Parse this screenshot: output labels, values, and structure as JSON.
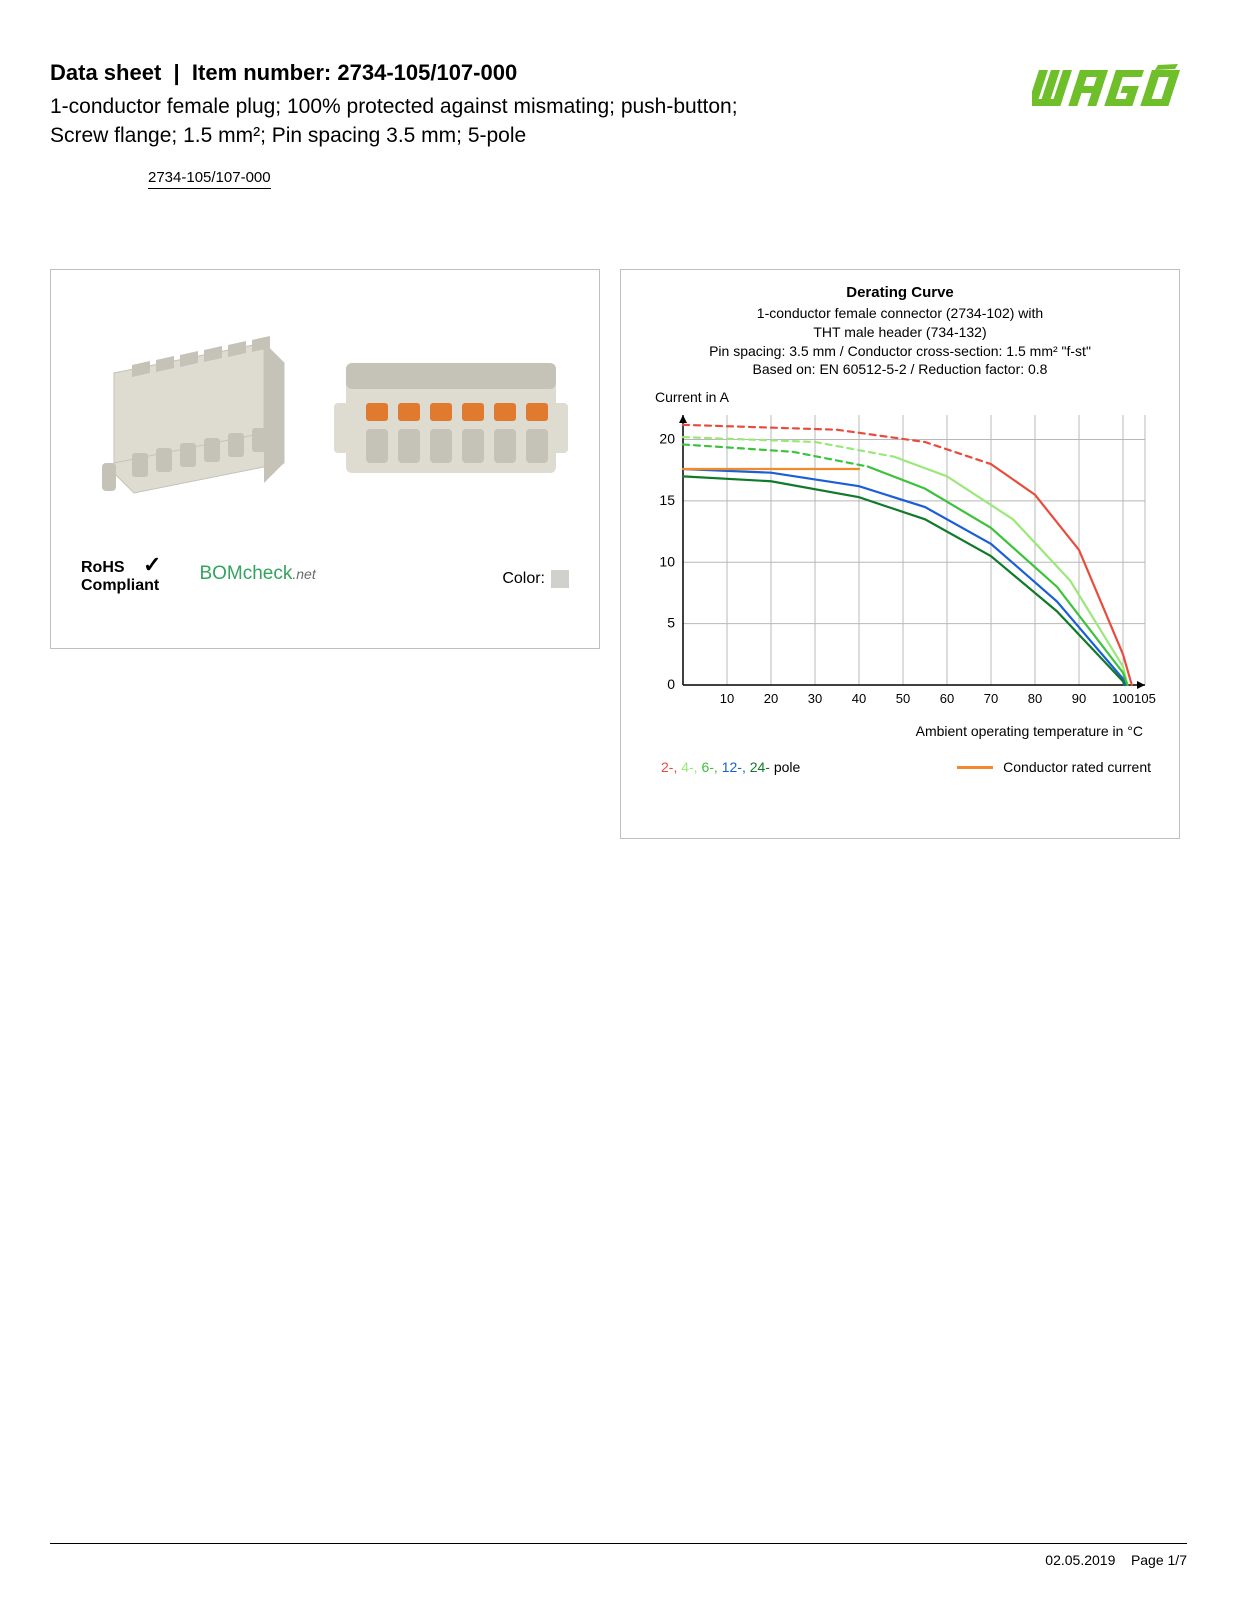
{
  "header": {
    "datasheet_label": "Data sheet",
    "item_label": "Item number:",
    "item_number": "2734-105/107-000",
    "subtitle_line1": "1-conductor female plug; 100% protected against mismating; push-button;",
    "subtitle_line2": "Screw flange; 1.5 mm²; Pin spacing 3.5 mm; 5-pole",
    "item_link": "2734-105/107-000",
    "logo_text": "WAGO",
    "logo_color": "#6fbf2b"
  },
  "left_panel": {
    "rohs_line1": "RoHS",
    "rohs_line2": "Compliant",
    "checkmark": "✓",
    "bomcheck_label": "BOMcheck",
    "bomcheck_suffix": ".net",
    "color_label": "Color:",
    "connector_body_color": "#dedcd0",
    "connector_shadow": "#c5c3b7",
    "connector_button_color": "#e07a2e"
  },
  "chart": {
    "title": "Derating Curve",
    "sub1": "1-conductor female connector (2734-102) with",
    "sub2": "THT male header (734-132)",
    "sub3": "Pin spacing: 3.5 mm / Conductor cross-section: 1.5 mm² \"f-st\"",
    "sub4": "Based on: EN 60512-5-2 / Reduction factor: 0.8",
    "ylabel": "Current in A",
    "xlabel": "Ambient operating temperature in °C",
    "ylim": [
      0,
      22
    ],
    "yticks": [
      0,
      5,
      10,
      15,
      20
    ],
    "xlim": [
      0,
      105
    ],
    "xticks": [
      10,
      20,
      30,
      40,
      50,
      60,
      70,
      80,
      90,
      100,
      105
    ],
    "grid_color": "#b8b8b8",
    "axis_color": "#000000",
    "series": [
      {
        "name": "2-pole-dash",
        "color": "#e84c3d",
        "dash": "6,5",
        "points": [
          [
            0,
            21.2
          ],
          [
            35,
            20.8
          ],
          [
            55,
            19.8
          ],
          [
            70,
            18.0
          ]
        ]
      },
      {
        "name": "2-pole",
        "color": "#e84c3d",
        "dash": "",
        "points": [
          [
            70,
            18.0
          ],
          [
            80,
            15.5
          ],
          [
            90,
            11.0
          ],
          [
            100,
            2.5
          ],
          [
            102,
            0
          ]
        ]
      },
      {
        "name": "4-pole-dash",
        "color": "#9be87a",
        "dash": "6,5",
        "points": [
          [
            0,
            20.2
          ],
          [
            30,
            19.8
          ],
          [
            48,
            18.6
          ]
        ]
      },
      {
        "name": "4-pole",
        "color": "#9be87a",
        "dash": "",
        "points": [
          [
            48,
            18.6
          ],
          [
            60,
            17.0
          ],
          [
            75,
            13.5
          ],
          [
            88,
            8.5
          ],
          [
            100,
            1.5
          ],
          [
            101,
            0
          ]
        ]
      },
      {
        "name": "6-pole-dash",
        "color": "#3cc23c",
        "dash": "6,5",
        "points": [
          [
            0,
            19.6
          ],
          [
            25,
            19.0
          ],
          [
            42,
            17.8
          ]
        ]
      },
      {
        "name": "6-pole",
        "color": "#3cc23c",
        "dash": "",
        "points": [
          [
            42,
            17.8
          ],
          [
            55,
            16.0
          ],
          [
            70,
            12.8
          ],
          [
            85,
            8.0
          ],
          [
            100,
            1.0
          ],
          [
            101,
            0
          ]
        ]
      },
      {
        "name": "12-pole",
        "color": "#1b5fd6",
        "dash": "",
        "points": [
          [
            0,
            17.6
          ],
          [
            20,
            17.3
          ],
          [
            40,
            16.2
          ],
          [
            55,
            14.5
          ],
          [
            70,
            11.5
          ],
          [
            85,
            6.8
          ],
          [
            100,
            0.5
          ],
          [
            100.5,
            0
          ]
        ]
      },
      {
        "name": "24-pole",
        "color": "#117a2a",
        "dash": "",
        "points": [
          [
            0,
            17.0
          ],
          [
            20,
            16.6
          ],
          [
            40,
            15.3
          ],
          [
            55,
            13.5
          ],
          [
            70,
            10.5
          ],
          [
            85,
            6.0
          ],
          [
            100,
            0.3
          ],
          [
            100.3,
            0
          ]
        ]
      },
      {
        "name": "rated",
        "color": "#f08a2a",
        "dash": "",
        "points": [
          [
            0,
            17.6
          ],
          [
            40,
            17.6
          ]
        ]
      }
    ],
    "legend_poles": [
      {
        "label": "2-,",
        "color": "#e84c3d"
      },
      {
        "label": "4-,",
        "color": "#9be87a"
      },
      {
        "label": "6-,",
        "color": "#3cc23c"
      },
      {
        "label": "12-,",
        "color": "#1b5fd6"
      },
      {
        "label": "24-",
        "color": "#117a2a"
      }
    ],
    "legend_pole_suffix": " pole",
    "legend_rated_label": "Conductor rated current",
    "legend_rated_color": "#f08a2a"
  },
  "footer": {
    "date": "02.05.2019",
    "page": "Page 1/7"
  }
}
